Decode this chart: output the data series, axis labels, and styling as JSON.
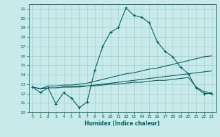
{
  "title": "",
  "xlabel": "Humidex (Indice chaleur)",
  "bg_color": "#c8eaea",
  "line_color": "#006060",
  "grid_color": "#a0d0d0",
  "xlim": [
    -0.5,
    23.5
  ],
  "ylim": [
    10,
    21.5
  ],
  "yticks": [
    10,
    11,
    12,
    13,
    14,
    15,
    16,
    17,
    18,
    19,
    20,
    21
  ],
  "xticks": [
    0,
    1,
    2,
    3,
    4,
    5,
    6,
    7,
    8,
    9,
    10,
    11,
    12,
    13,
    14,
    15,
    16,
    17,
    18,
    19,
    20,
    21,
    22,
    23
  ],
  "series": [
    [
      12.7,
      12.1,
      12.6,
      10.9,
      12.1,
      11.5,
      10.5,
      11.1,
      14.5,
      17.0,
      18.5,
      19.0,
      21.1,
      20.3,
      20.1,
      19.5,
      17.5,
      16.5,
      15.9,
      14.8,
      14.1,
      12.6,
      12.0,
      12.0
    ],
    [
      12.7,
      12.5,
      12.8,
      12.8,
      12.9,
      12.9,
      13.0,
      13.1,
      13.3,
      13.5,
      13.7,
      13.9,
      14.1,
      14.2,
      14.4,
      14.6,
      14.7,
      14.9,
      15.1,
      15.3,
      15.5,
      15.7,
      15.9,
      16.0
    ],
    [
      12.7,
      12.5,
      12.6,
      12.6,
      12.7,
      12.7,
      12.8,
      12.8,
      12.9,
      13.0,
      13.1,
      13.2,
      13.3,
      13.4,
      13.5,
      13.6,
      13.7,
      13.8,
      13.9,
      14.0,
      14.1,
      14.2,
      14.3,
      14.4
    ],
    [
      12.7,
      12.5,
      12.6,
      12.6,
      12.7,
      12.7,
      12.7,
      12.8,
      12.8,
      12.9,
      13.0,
      13.0,
      13.1,
      13.2,
      13.2,
      13.3,
      13.4,
      13.4,
      13.5,
      13.6,
      13.7,
      12.7,
      12.2,
      12.1
    ]
  ],
  "markers": [
    true,
    false,
    false,
    false
  ]
}
